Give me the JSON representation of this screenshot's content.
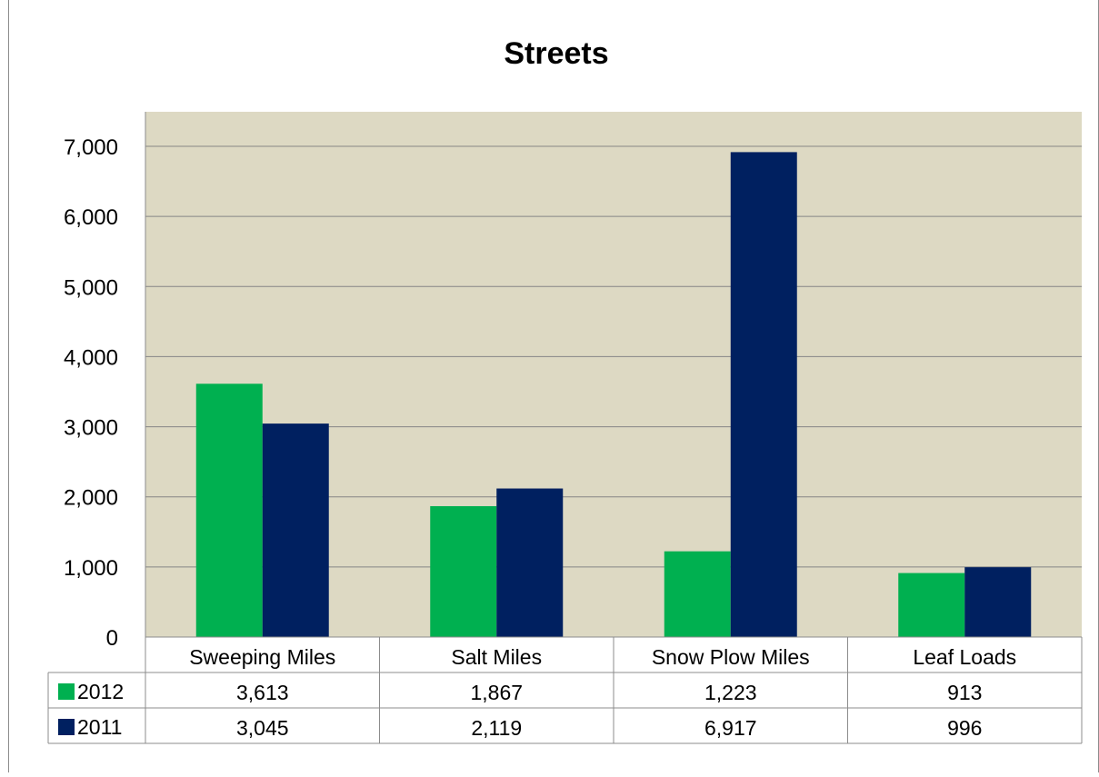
{
  "chart_data": {
    "type": "bar",
    "title": "Streets",
    "categories": [
      "Sweeping Miles",
      "Salt Miles",
      "Snow Plow Miles",
      "Leaf Loads"
    ],
    "series": [
      {
        "name": "2012",
        "color": "#00B050",
        "values": [
          3613,
          1867,
          1223,
          913
        ],
        "labels": [
          "3,613",
          "1,867",
          "1,223",
          "913"
        ]
      },
      {
        "name": "2011",
        "color": "#002060",
        "values": [
          3045,
          2119,
          6917,
          996
        ],
        "labels": [
          "3,045",
          "2,119",
          "6,917",
          "996"
        ]
      }
    ],
    "ylim": [
      0,
      7000
    ],
    "yticks": [
      "0",
      "1,000",
      "2,000",
      "3,000",
      "4,000",
      "5,000",
      "6,000",
      "7,000"
    ],
    "grid": true,
    "legend": "data-table",
    "plot_background": "#DDD9C3",
    "gridline_color": "#868686"
  }
}
